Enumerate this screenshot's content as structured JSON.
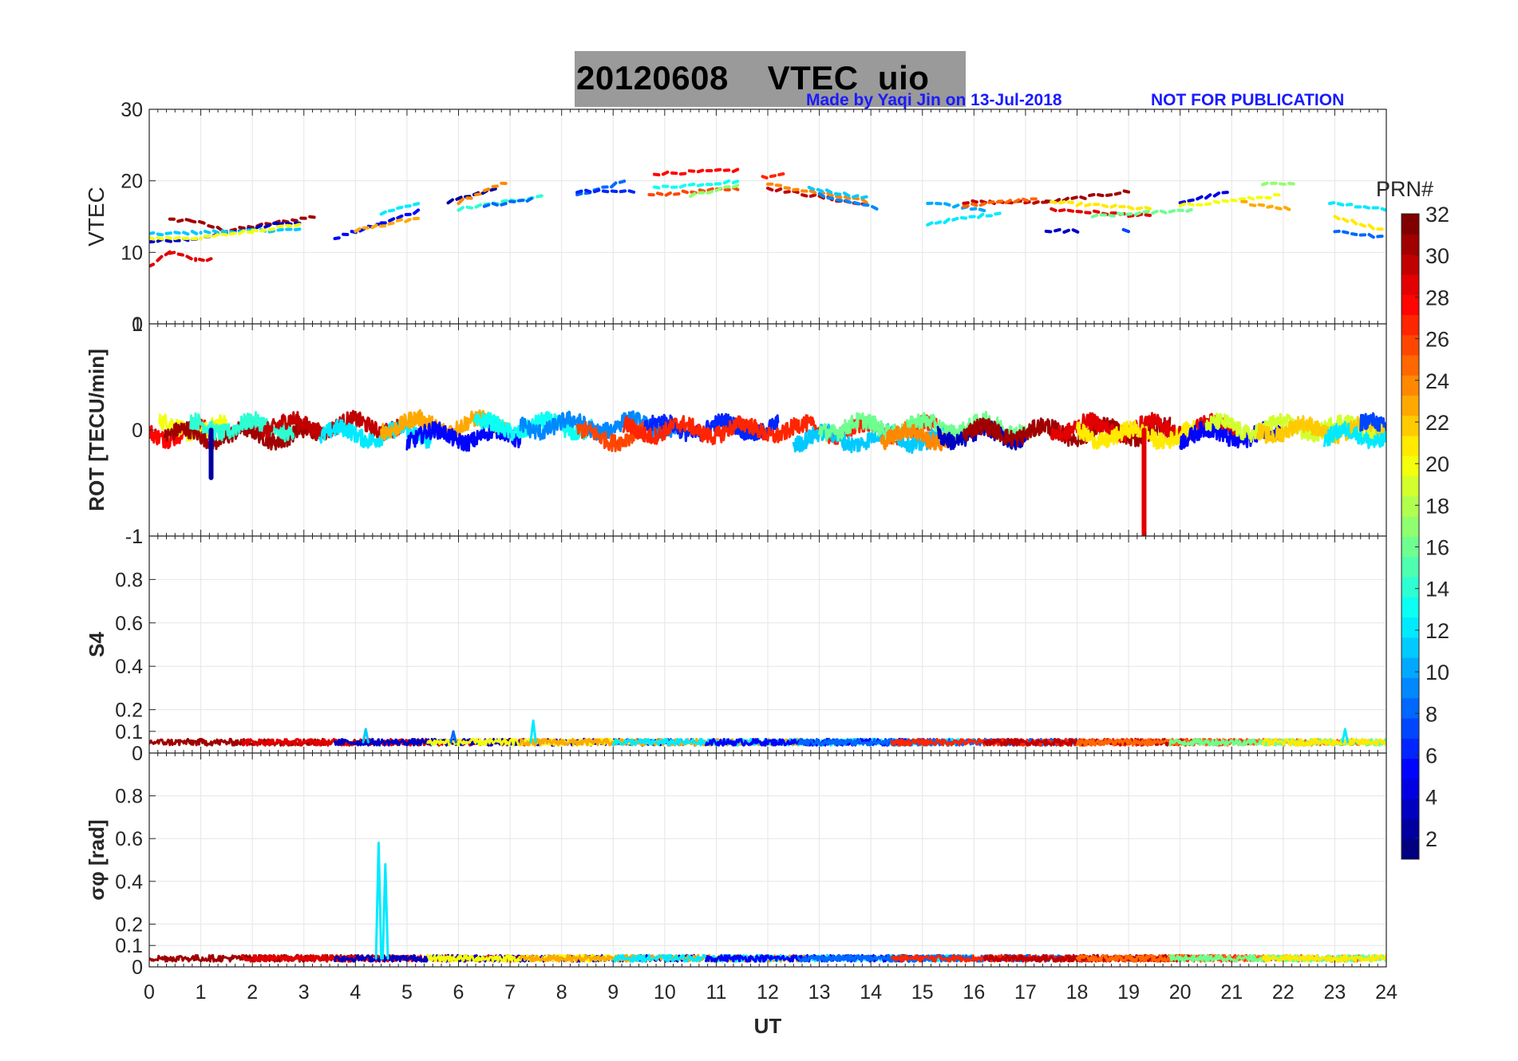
{
  "title": {
    "date": "20120608",
    "name": "VTEC  uio",
    "credit": "Made by Yaqi Jin on 13-Jul-2018",
    "notice": "NOT FOR PUBLICATION"
  },
  "colorbar": {
    "label": "PRN#",
    "ticks": [
      "2",
      "4",
      "6",
      "8",
      "10",
      "12",
      "14",
      "16",
      "18",
      "20",
      "22",
      "24",
      "26",
      "28",
      "30",
      "32"
    ],
    "range": [
      1,
      32
    ]
  },
  "chart_data": [
    {
      "type": "line",
      "id": "vtec",
      "ylabel": "VTEC",
      "xlim": [
        0,
        24
      ],
      "ylim": [
        0,
        30
      ],
      "yticks": [
        "0",
        "10",
        "20",
        "30"
      ],
      "series_note": "estimated VTEC per satellite pass",
      "series": [
        {
          "prn": 29,
          "x": [
            0.0,
            0.4,
            0.9,
            1.2
          ],
          "y": [
            8,
            10,
            9,
            9
          ]
        },
        {
          "prn": 31,
          "x": [
            0.4,
            0.8,
            1.5,
            3.2
          ],
          "y": [
            14.5,
            14.5,
            13,
            15
          ]
        },
        {
          "prn": 3,
          "x": [
            0.0,
            1.0,
            2.5,
            3.0
          ],
          "y": [
            11.5,
            12,
            14,
            14
          ]
        },
        {
          "prn": 11,
          "x": [
            0.0,
            1.0,
            2.0,
            3.0
          ],
          "y": [
            12.5,
            12.8,
            13,
            13.2
          ]
        },
        {
          "prn": 20,
          "x": [
            0.0,
            1.0,
            2.0,
            3.0
          ],
          "y": [
            12,
            12,
            13,
            14
          ]
        },
        {
          "prn": 5,
          "x": [
            3.6,
            4.5,
            5.3
          ],
          "y": [
            12,
            14,
            16
          ]
        },
        {
          "prn": 12,
          "x": [
            4.5,
            5.3
          ],
          "y": [
            15.5,
            17
          ]
        },
        {
          "prn": 23,
          "x": [
            4.0,
            5.3
          ],
          "y": [
            13,
            15
          ]
        },
        {
          "prn": 2,
          "x": [
            5.8,
            6.8
          ],
          "y": [
            17,
            19
          ]
        },
        {
          "prn": 24,
          "x": [
            6.0,
            7.0
          ],
          "y": [
            17,
            20
          ]
        },
        {
          "prn": 14,
          "x": [
            6.0,
            7.7
          ],
          "y": [
            16,
            18
          ]
        },
        {
          "prn": 8,
          "x": [
            6.5,
            7.5
          ],
          "y": [
            16.5,
            17.5
          ]
        },
        {
          "prn": 8,
          "x": [
            8.3,
            9.3
          ],
          "y": [
            18,
            20
          ]
        },
        {
          "prn": 6,
          "x": [
            8.3,
            9.4
          ],
          "y": [
            18.5,
            18.5
          ]
        },
        {
          "prn": 28,
          "x": [
            9.8,
            11.5
          ],
          "y": [
            21,
            21.5
          ]
        },
        {
          "prn": 26,
          "x": [
            9.7,
            11.5
          ],
          "y": [
            18,
            19
          ]
        },
        {
          "prn": 13,
          "x": [
            9.8,
            11.5
          ],
          "y": [
            19,
            20
          ]
        },
        {
          "prn": 17,
          "x": [
            10.5,
            11.5
          ],
          "y": [
            18,
            19.5
          ]
        },
        {
          "prn": 27,
          "x": [
            11.9,
            12.3
          ],
          "y": [
            20.5,
            21
          ]
        },
        {
          "prn": 30,
          "x": [
            12.0,
            14.0
          ],
          "y": [
            19,
            16.5
          ]
        },
        {
          "prn": 24,
          "x": [
            12.0,
            14.0
          ],
          "y": [
            19.5,
            17
          ]
        },
        {
          "prn": 11,
          "x": [
            12.8,
            14.0
          ],
          "y": [
            19,
            17.5
          ]
        },
        {
          "prn": 9,
          "x": [
            13.0,
            14.2
          ],
          "y": [
            18,
            16
          ]
        },
        {
          "prn": 12,
          "x": [
            15.1,
            16.5
          ],
          "y": [
            14,
            15.5
          ]
        },
        {
          "prn": 10,
          "x": [
            15.1,
            16.2
          ],
          "y": [
            17,
            16
          ]
        },
        {
          "prn": 30,
          "x": [
            15.8,
            17.5
          ],
          "y": [
            17,
            17
          ]
        },
        {
          "prn": 25,
          "x": [
            15.8,
            17.2
          ],
          "y": [
            16.5,
            17.5
          ]
        },
        {
          "prn": 31,
          "x": [
            17.4,
            19.0
          ],
          "y": [
            17,
            18.5
          ]
        },
        {
          "prn": 29,
          "x": [
            17.5,
            19.5
          ],
          "y": [
            16,
            15
          ]
        },
        {
          "prn": 21,
          "x": [
            17.5,
            19.5
          ],
          "y": [
            17,
            16
          ]
        },
        {
          "prn": 16,
          "x": [
            18.3,
            20.3
          ],
          "y": [
            15,
            16
          ]
        },
        {
          "prn": 3,
          "x": [
            17.4,
            18.1
          ],
          "y": [
            13,
            13
          ]
        },
        {
          "prn": 7,
          "x": [
            18.9,
            19.1
          ],
          "y": [
            13,
            12.6
          ]
        },
        {
          "prn": 4,
          "x": [
            20.0,
            21.0
          ],
          "y": [
            17,
            18.5
          ]
        },
        {
          "prn": 20,
          "x": [
            20.0,
            22.0
          ],
          "y": [
            16.5,
            18
          ]
        },
        {
          "prn": 17,
          "x": [
            21.6,
            22.2
          ],
          "y": [
            19.5,
            19.5
          ]
        },
        {
          "prn": 23,
          "x": [
            21.2,
            22.2
          ],
          "y": [
            17,
            16
          ]
        },
        {
          "prn": 12,
          "x": [
            22.9,
            24.0
          ],
          "y": [
            17,
            16
          ]
        },
        {
          "prn": 8,
          "x": [
            23.0,
            24.0
          ],
          "y": [
            13,
            12
          ]
        },
        {
          "prn": 21,
          "x": [
            23.0,
            24.0
          ],
          "y": [
            15,
            13
          ]
        }
      ]
    },
    {
      "type": "line",
      "id": "rot",
      "ylabel": "ROT [TECU/min]",
      "xlim": [
        0,
        24
      ],
      "ylim": [
        -1,
        1
      ],
      "yticks": [
        "-1",
        "0",
        "1"
      ],
      "annotations": [
        {
          "prn": 29,
          "x": 19.3,
          "min": -1,
          "note": "spike"
        },
        {
          "prn": 2,
          "x": 1.2,
          "min": -0.45,
          "note": "spike"
        }
      ],
      "passes": [
        {
          "prn": 28,
          "x0": 0.0,
          "x1": 1.2,
          "level": -0.03
        },
        {
          "prn": 20,
          "x0": 0.2,
          "x1": 1.5,
          "level": 0.02
        },
        {
          "prn": 31,
          "x0": 0.3,
          "x1": 3.3,
          "level": -0.05
        },
        {
          "prn": 14,
          "x0": 0.8,
          "x1": 2.8,
          "level": 0.03
        },
        {
          "prn": 30,
          "x0": 2.2,
          "x1": 4.9,
          "level": 0.04
        },
        {
          "prn": 12,
          "x0": 3.3,
          "x1": 5.5,
          "level": -0.04
        },
        {
          "prn": 23,
          "x0": 4.5,
          "x1": 7.0,
          "level": 0.05
        },
        {
          "prn": 5,
          "x0": 5.0,
          "x1": 7.2,
          "level": -0.06
        },
        {
          "prn": 13,
          "x0": 6.3,
          "x1": 8.6,
          "level": 0.03
        },
        {
          "prn": 9,
          "x0": 7.2,
          "x1": 10.2,
          "level": 0.04
        },
        {
          "prn": 26,
          "x0": 8.3,
          "x1": 9.6,
          "level": -0.06
        },
        {
          "prn": 6,
          "x0": 9.6,
          "x1": 12.2,
          "level": 0.02
        },
        {
          "prn": 27,
          "x0": 9.2,
          "x1": 15.3,
          "level": 0.0
        },
        {
          "prn": 11,
          "x0": 12.5,
          "x1": 15.8,
          "level": -0.08
        },
        {
          "prn": 16,
          "x0": 13.0,
          "x1": 17.0,
          "level": 0.03
        },
        {
          "prn": 24,
          "x0": 14.2,
          "x1": 15.5,
          "level": -0.06
        },
        {
          "prn": 3,
          "x0": 15.3,
          "x1": 17.0,
          "level": -0.05
        },
        {
          "prn": 31,
          "x0": 15.8,
          "x1": 19.8,
          "level": -0.02
        },
        {
          "prn": 29,
          "x0": 17.5,
          "x1": 21.2,
          "level": 0.02
        },
        {
          "prn": 21,
          "x0": 18.0,
          "x1": 20.3,
          "level": -0.05
        },
        {
          "prn": 5,
          "x0": 20.0,
          "x1": 22.0,
          "level": -0.05
        },
        {
          "prn": 19,
          "x0": 20.5,
          "x1": 24.0,
          "level": 0.02
        },
        {
          "prn": 22,
          "x0": 21.5,
          "x1": 24.0,
          "level": 0.0
        },
        {
          "prn": 12,
          "x0": 22.8,
          "x1": 24.0,
          "level": -0.06
        },
        {
          "prn": 7,
          "x0": 23.5,
          "x1": 24.0,
          "level": 0.03
        }
      ]
    },
    {
      "type": "line",
      "id": "s4",
      "ylabel": "S4",
      "xlim": [
        0,
        24
      ],
      "ylim": [
        0,
        1
      ],
      "yticks": [
        "0",
        "0.1",
        "0.2",
        "0.4",
        "0.6",
        "0.8",
        "1"
      ],
      "baseline": 0.05,
      "peaks": [
        {
          "prn": 12,
          "x": 7.45,
          "y": 0.15
        },
        {
          "prn": 11,
          "x": 4.2,
          "y": 0.11
        },
        {
          "prn": 8,
          "x": 5.9,
          "y": 0.1
        },
        {
          "prn": 12,
          "x": 23.2,
          "y": 0.11
        }
      ]
    },
    {
      "type": "line",
      "id": "sigma_phi",
      "ylabel": "σφ [rad]",
      "xlim": [
        0,
        24
      ],
      "ylim": [
        0,
        1
      ],
      "yticks": [
        "0",
        "0.1",
        "0.2",
        "0.4",
        "0.6",
        "0.8"
      ],
      "baseline": 0.04,
      "peaks": [
        {
          "prn": 12,
          "x": 4.45,
          "y": 0.58
        },
        {
          "prn": 12,
          "x": 4.58,
          "y": 0.48
        }
      ]
    }
  ],
  "xaxis": {
    "label": "UT",
    "ticks": [
      "0",
      "1",
      "2",
      "3",
      "4",
      "5",
      "6",
      "7",
      "8",
      "9",
      "10",
      "11",
      "12",
      "13",
      "14",
      "15",
      "16",
      "17",
      "18",
      "19",
      "20",
      "21",
      "22",
      "23",
      "24"
    ]
  }
}
